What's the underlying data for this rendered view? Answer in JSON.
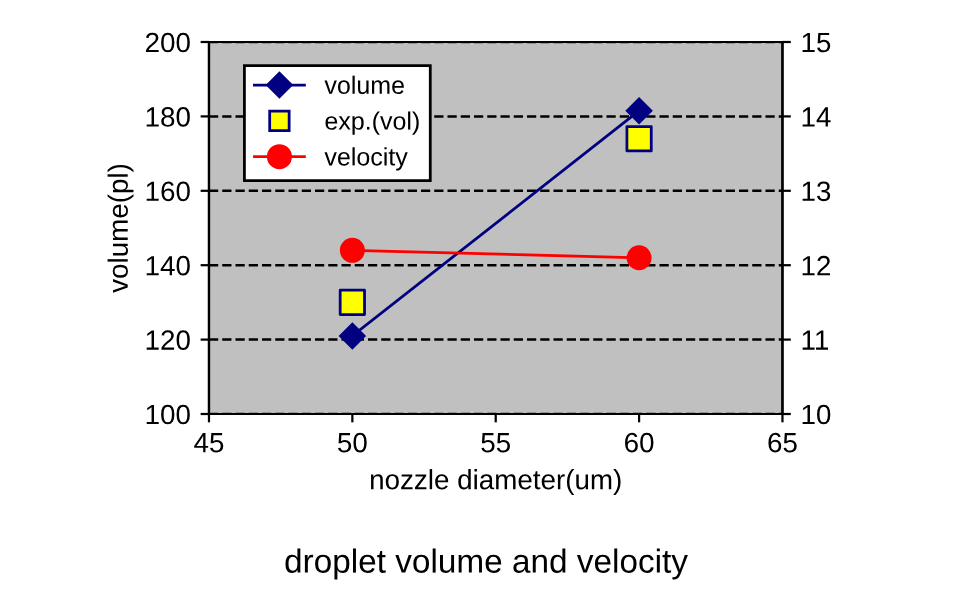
{
  "chart_data": {
    "type": "line",
    "title": "droplet volume and velocity",
    "xlabel": "nozzle diameter(um)",
    "ylabel": "volume(pl)",
    "x": [
      50,
      60
    ],
    "series": [
      {
        "name": "volume",
        "color": "#000080",
        "values": [
          121,
          181.5
        ],
        "marker": "diamond"
      },
      {
        "name": "exp.(vol)",
        "type": "scatter",
        "color": "#ffff00",
        "values": [
          130,
          174
        ],
        "marker": "square"
      },
      {
        "name": "velocity",
        "color": "#ff0000",
        "values": [
          12.2,
          12.1
        ],
        "marker": "circle",
        "axis": "y2"
      }
    ],
    "xlim": [
      45,
      65
    ],
    "xticks": [
      45,
      50,
      55,
      60,
      65
    ],
    "ylim": [
      100,
      200
    ],
    "yticks": [
      100,
      120,
      140,
      160,
      180,
      200
    ],
    "y2lim": [
      10,
      15
    ],
    "y2ticks": [
      10,
      11,
      12,
      13,
      14,
      15
    ],
    "grid": "y",
    "legend": "top left"
  }
}
